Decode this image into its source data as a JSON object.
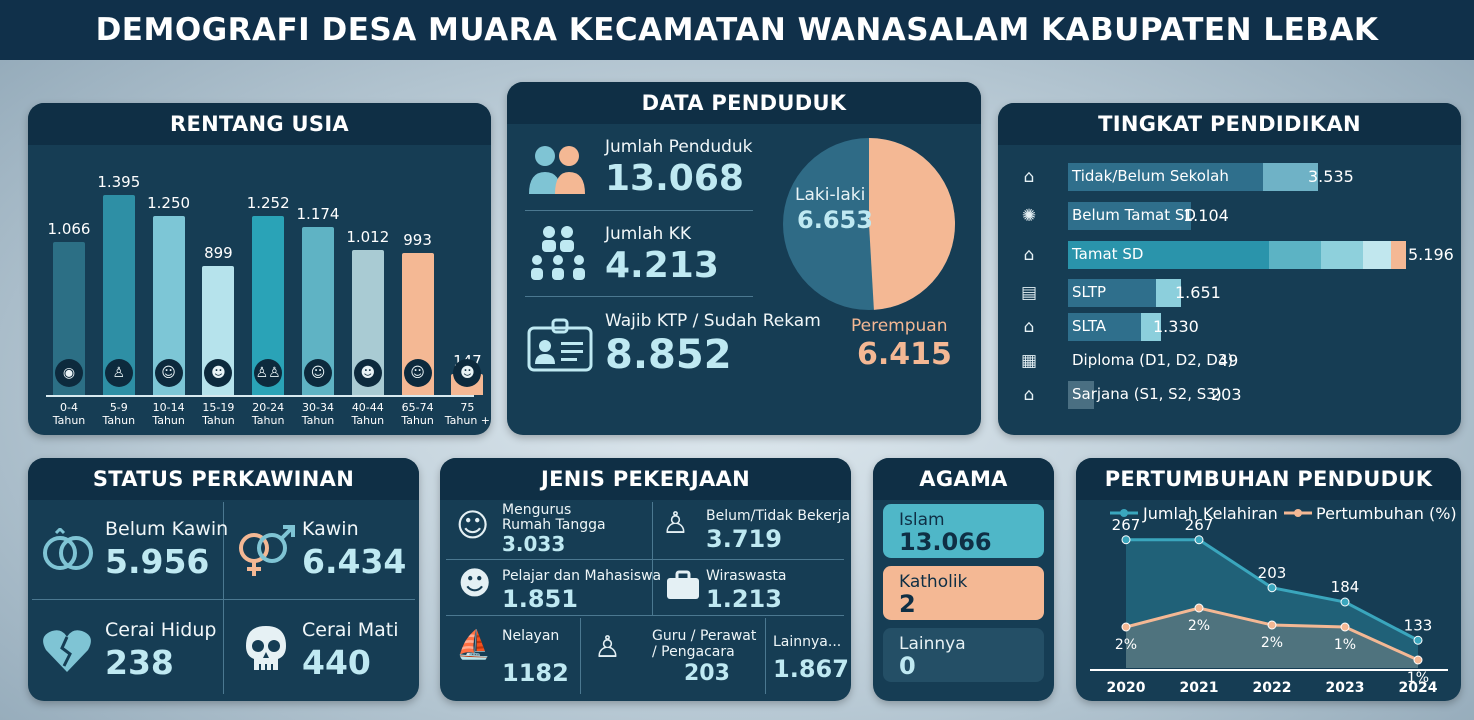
{
  "title": "DEMOGRAFI DESA MUARA KECAMATAN WANASALAM KABUPATEN LEBAK",
  "rentang_usia": {
    "heading": "RENTANG USIA",
    "groups": [
      {
        "value": "1.066",
        "label1": "0-4",
        "label2": "Tahun",
        "icon": "baby-icon",
        "glyph": "◉",
        "color": "#2c6f85",
        "level": 1066
      },
      {
        "value": "1.395",
        "label1": "5-9",
        "label2": "Tahun",
        "icon": "child-icon",
        "glyph": "♙",
        "color": "#2e8fa5",
        "level": 1395
      },
      {
        "value": "1.250",
        "label1": "10-14",
        "label2": "Tahun",
        "icon": "kid-icon",
        "glyph": "☺",
        "color": "#7dc6d6",
        "level": 1250
      },
      {
        "value": "899",
        "label1": "15-19",
        "label2": "Tahun",
        "icon": "teen-icon",
        "glyph": "☻",
        "color": "#b6e3ec",
        "level": 899
      },
      {
        "value": "1.252",
        "label1": "20-24",
        "label2": "Tahun",
        "icon": "couple-icon",
        "glyph": "♙♙",
        "color": "#2aa3b7",
        "level": 1252
      },
      {
        "value": "1.174",
        "label1": "30-34",
        "label2": "Tahun",
        "icon": "adult-icon",
        "glyph": "☺",
        "color": "#5fb3c4",
        "level": 1174
      },
      {
        "value": "1.012",
        "label1": "40-44",
        "label2": "Tahun",
        "icon": "middle-age-icon",
        "glyph": "☻",
        "color": "#a9cbd3",
        "level": 1012
      },
      {
        "value": "993",
        "label1": "65-74",
        "label2": "Tahun",
        "icon": "elder-icon",
        "glyph": "☺",
        "color": "#f4b894",
        "level": 993
      },
      {
        "value": "147",
        "label1": "75",
        "label2": "Tahun +",
        "icon": "senior-icon",
        "glyph": "☻",
        "color": "#f4b894",
        "level": 147
      }
    ]
  },
  "data_penduduk": {
    "heading": "DATA PENDUDUK",
    "jumlah_label": "Jumlah Penduduk",
    "jumlah_value": "13.068",
    "kk_label": "Jumlah KK",
    "kk_value": "4.213",
    "ktp_label": "Wajib KTP / Sudah Rekam",
    "ktp_value": "8.852",
    "pie": {
      "male_label": "Laki-laki",
      "male_value": "6.653",
      "male_number": 6653,
      "male_color": "#2f6b86",
      "female_label": "Perempuan",
      "female_value": "6.415",
      "female_number": 6415,
      "female_color": "#f4b894"
    }
  },
  "pendidikan": {
    "heading": "TINGKAT PENDIDIKAN",
    "rows": [
      {
        "label": "Tidak/Belum Sekolah",
        "value": "3.535",
        "icon": "graduation-cap-icon",
        "glyph": "⌂"
      },
      {
        "label": "Belum Tamat SD",
        "value": "1.104",
        "icon": "gear-face-icon",
        "glyph": "✺"
      },
      {
        "label": "Tamat SD",
        "value": "5.196",
        "icon": "mortarboard-icon",
        "glyph": "⌂"
      },
      {
        "label": "SLTP",
        "value": "1.651",
        "icon": "book-icon",
        "glyph": "▤"
      },
      {
        "label": "SLTA",
        "value": "1.330",
        "icon": "cap-icon",
        "glyph": "⌂"
      },
      {
        "label": "Diploma (D1, D2, D3)",
        "value": "49",
        "icon": "certificate-icon",
        "glyph": "▦"
      },
      {
        "label": "Sarjana (S1, S2, S3)",
        "value": "203",
        "icon": "sarjana-cap-icon",
        "glyph": "⌂"
      }
    ]
  },
  "perkawinan": {
    "heading": "STATUS PERKAWINAN",
    "belum_label": "Belum Kawin",
    "belum_value": "5.956",
    "kawin_label": "Kawin",
    "kawin_value": "6.434",
    "cerai_hidup_label": "Cerai Hidup",
    "cerai_hidup_value": "238",
    "cerai_mati_label": "Cerai Mati",
    "cerai_mati_value": "440"
  },
  "pekerjaan": {
    "heading": "JENIS PEKERJAAN",
    "rt_label1": "Mengurus",
    "rt_label2": "Rumah Tangga",
    "rt_value": "3.033",
    "btb_label": "Belum/Tidak Bekerja",
    "btb_value": "3.719",
    "pelajar_label": "Pelajar dan Mahasiswa",
    "pelajar_value": "1.851",
    "wira_label": "Wiraswasta",
    "wira_value": "1.213",
    "nelayan_label": "Nelayan",
    "nelayan_value": "1182",
    "guru_label1": "Guru / Perawat",
    "guru_label2": "/ Pengacara",
    "guru_value": "203",
    "lain_label": "Lainnya...",
    "lain_value": "1.867"
  },
  "agama": {
    "heading": "AGAMA",
    "items": [
      {
        "label": "Islam",
        "value": "13.066"
      },
      {
        "label": "Katholik",
        "value": "2"
      },
      {
        "label": "Lainnya",
        "value": "0"
      }
    ]
  },
  "chart_data": {
    "type": "line",
    "title": "PERTUMBUHAN PENDUDUK",
    "x": [
      "2020",
      "2021",
      "2022",
      "2023",
      "2024"
    ],
    "series": [
      {
        "name": "Jumlah Kelahiran",
        "values": [
          267,
          267,
          203,
          184,
          133
        ],
        "labels": [
          "267",
          "267",
          "203",
          "184",
          "133"
        ],
        "color": "#3aa6bd"
      },
      {
        "name": "Pertumbuhan (%)",
        "values": [
          2,
          2,
          2,
          1,
          1
        ],
        "labels": [
          "2%",
          "2%",
          "2%",
          "1%",
          "1%"
        ],
        "color": "#f4b894"
      }
    ],
    "legend": "top",
    "grid": false
  }
}
